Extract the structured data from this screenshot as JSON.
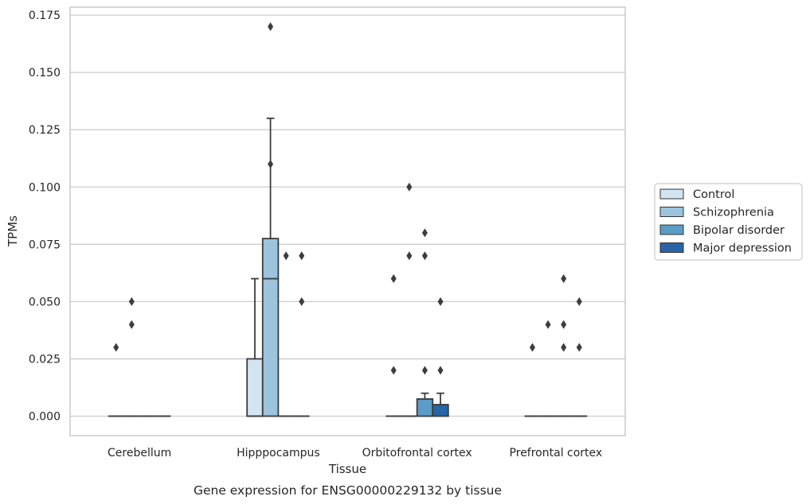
{
  "chart_data": {
    "type": "box",
    "xlabel": "Tissue",
    "ylabel": "TPMs",
    "caption": "Gene expression for ENSG00000229132 by tissue",
    "ylim": [
      -0.0085,
      0.1785
    ],
    "yticks": [
      "0.000",
      "0.025",
      "0.050",
      "0.075",
      "0.100",
      "0.125",
      "0.150",
      "0.175"
    ],
    "ytick_values": [
      0,
      0.025,
      0.05,
      0.075,
      0.1,
      0.125,
      0.15,
      0.175
    ],
    "grid": "horizontal",
    "legend_position": "right",
    "categories": [
      "Cerebellum",
      "Hipppocampus",
      "Orbitofrontal cortex",
      "Prefrontal cortex"
    ],
    "series": [
      {
        "name": "Control",
        "color": "#d3e4f2",
        "boxes": [
          {
            "q1": 0,
            "median": 0,
            "q3": 0,
            "whislo": 0,
            "whishi": 0,
            "fliers": [
              0.03
            ]
          },
          {
            "q1": 0,
            "median": 0,
            "q3": 0.025,
            "whislo": 0,
            "whishi": 0.06,
            "fliers": []
          },
          {
            "q1": 0,
            "median": 0,
            "q3": 0,
            "whislo": 0,
            "whishi": 0,
            "fliers": [
              0.06,
              0.02
            ]
          },
          {
            "q1": 0,
            "median": 0,
            "q3": 0,
            "whislo": 0,
            "whishi": 0,
            "fliers": [
              0.03
            ]
          }
        ]
      },
      {
        "name": "Schizophrenia",
        "color": "#9dc4de",
        "boxes": [
          {
            "q1": 0,
            "median": 0,
            "q3": 0,
            "whislo": 0,
            "whishi": 0,
            "fliers": [
              0.05,
              0.04
            ]
          },
          {
            "q1": 0,
            "median": 0.06,
            "q3": 0.0775,
            "whislo": 0,
            "whishi": 0.13,
            "fliers": [
              0.17,
              0.11
            ]
          },
          {
            "q1": 0,
            "median": 0,
            "q3": 0,
            "whislo": 0,
            "whishi": 0,
            "fliers": [
              0.1,
              0.07
            ]
          },
          {
            "q1": 0,
            "median": 0,
            "q3": 0,
            "whislo": 0,
            "whishi": 0,
            "fliers": [
              0.04
            ]
          }
        ]
      },
      {
        "name": "Bipolar disorder",
        "color": "#5b9cc6",
        "boxes": [
          {
            "q1": 0,
            "median": 0,
            "q3": 0,
            "whislo": 0,
            "whishi": 0,
            "fliers": []
          },
          {
            "q1": 0,
            "median": 0,
            "q3": 0,
            "whislo": 0,
            "whishi": 0,
            "fliers": [
              0.07
            ]
          },
          {
            "q1": 0,
            "median": 0.0075,
            "q3": 0.0075,
            "whislo": 0,
            "whishi": 0.01,
            "fliers": [
              0.08,
              0.07,
              0.02
            ]
          },
          {
            "q1": 0,
            "median": 0,
            "q3": 0,
            "whislo": 0,
            "whishi": 0,
            "fliers": [
              0.06,
              0.04,
              0.03
            ]
          }
        ]
      },
      {
        "name": "Major depression",
        "color": "#2865a7",
        "boxes": [
          {
            "q1": 0,
            "median": 0,
            "q3": 0,
            "whislo": 0,
            "whishi": 0,
            "fliers": []
          },
          {
            "q1": 0,
            "median": 0,
            "q3": 0,
            "whislo": 0,
            "whishi": 0,
            "fliers": [
              0.07,
              0.05
            ]
          },
          {
            "q1": 0,
            "median": 0.005,
            "q3": 0.005,
            "whislo": 0,
            "whishi": 0.01,
            "fliers": [
              0.05,
              0.02
            ]
          },
          {
            "q1": 0,
            "median": 0,
            "q3": 0,
            "whislo": 0,
            "whishi": 0,
            "fliers": [
              0.05,
              0.03
            ]
          }
        ]
      }
    ]
  }
}
